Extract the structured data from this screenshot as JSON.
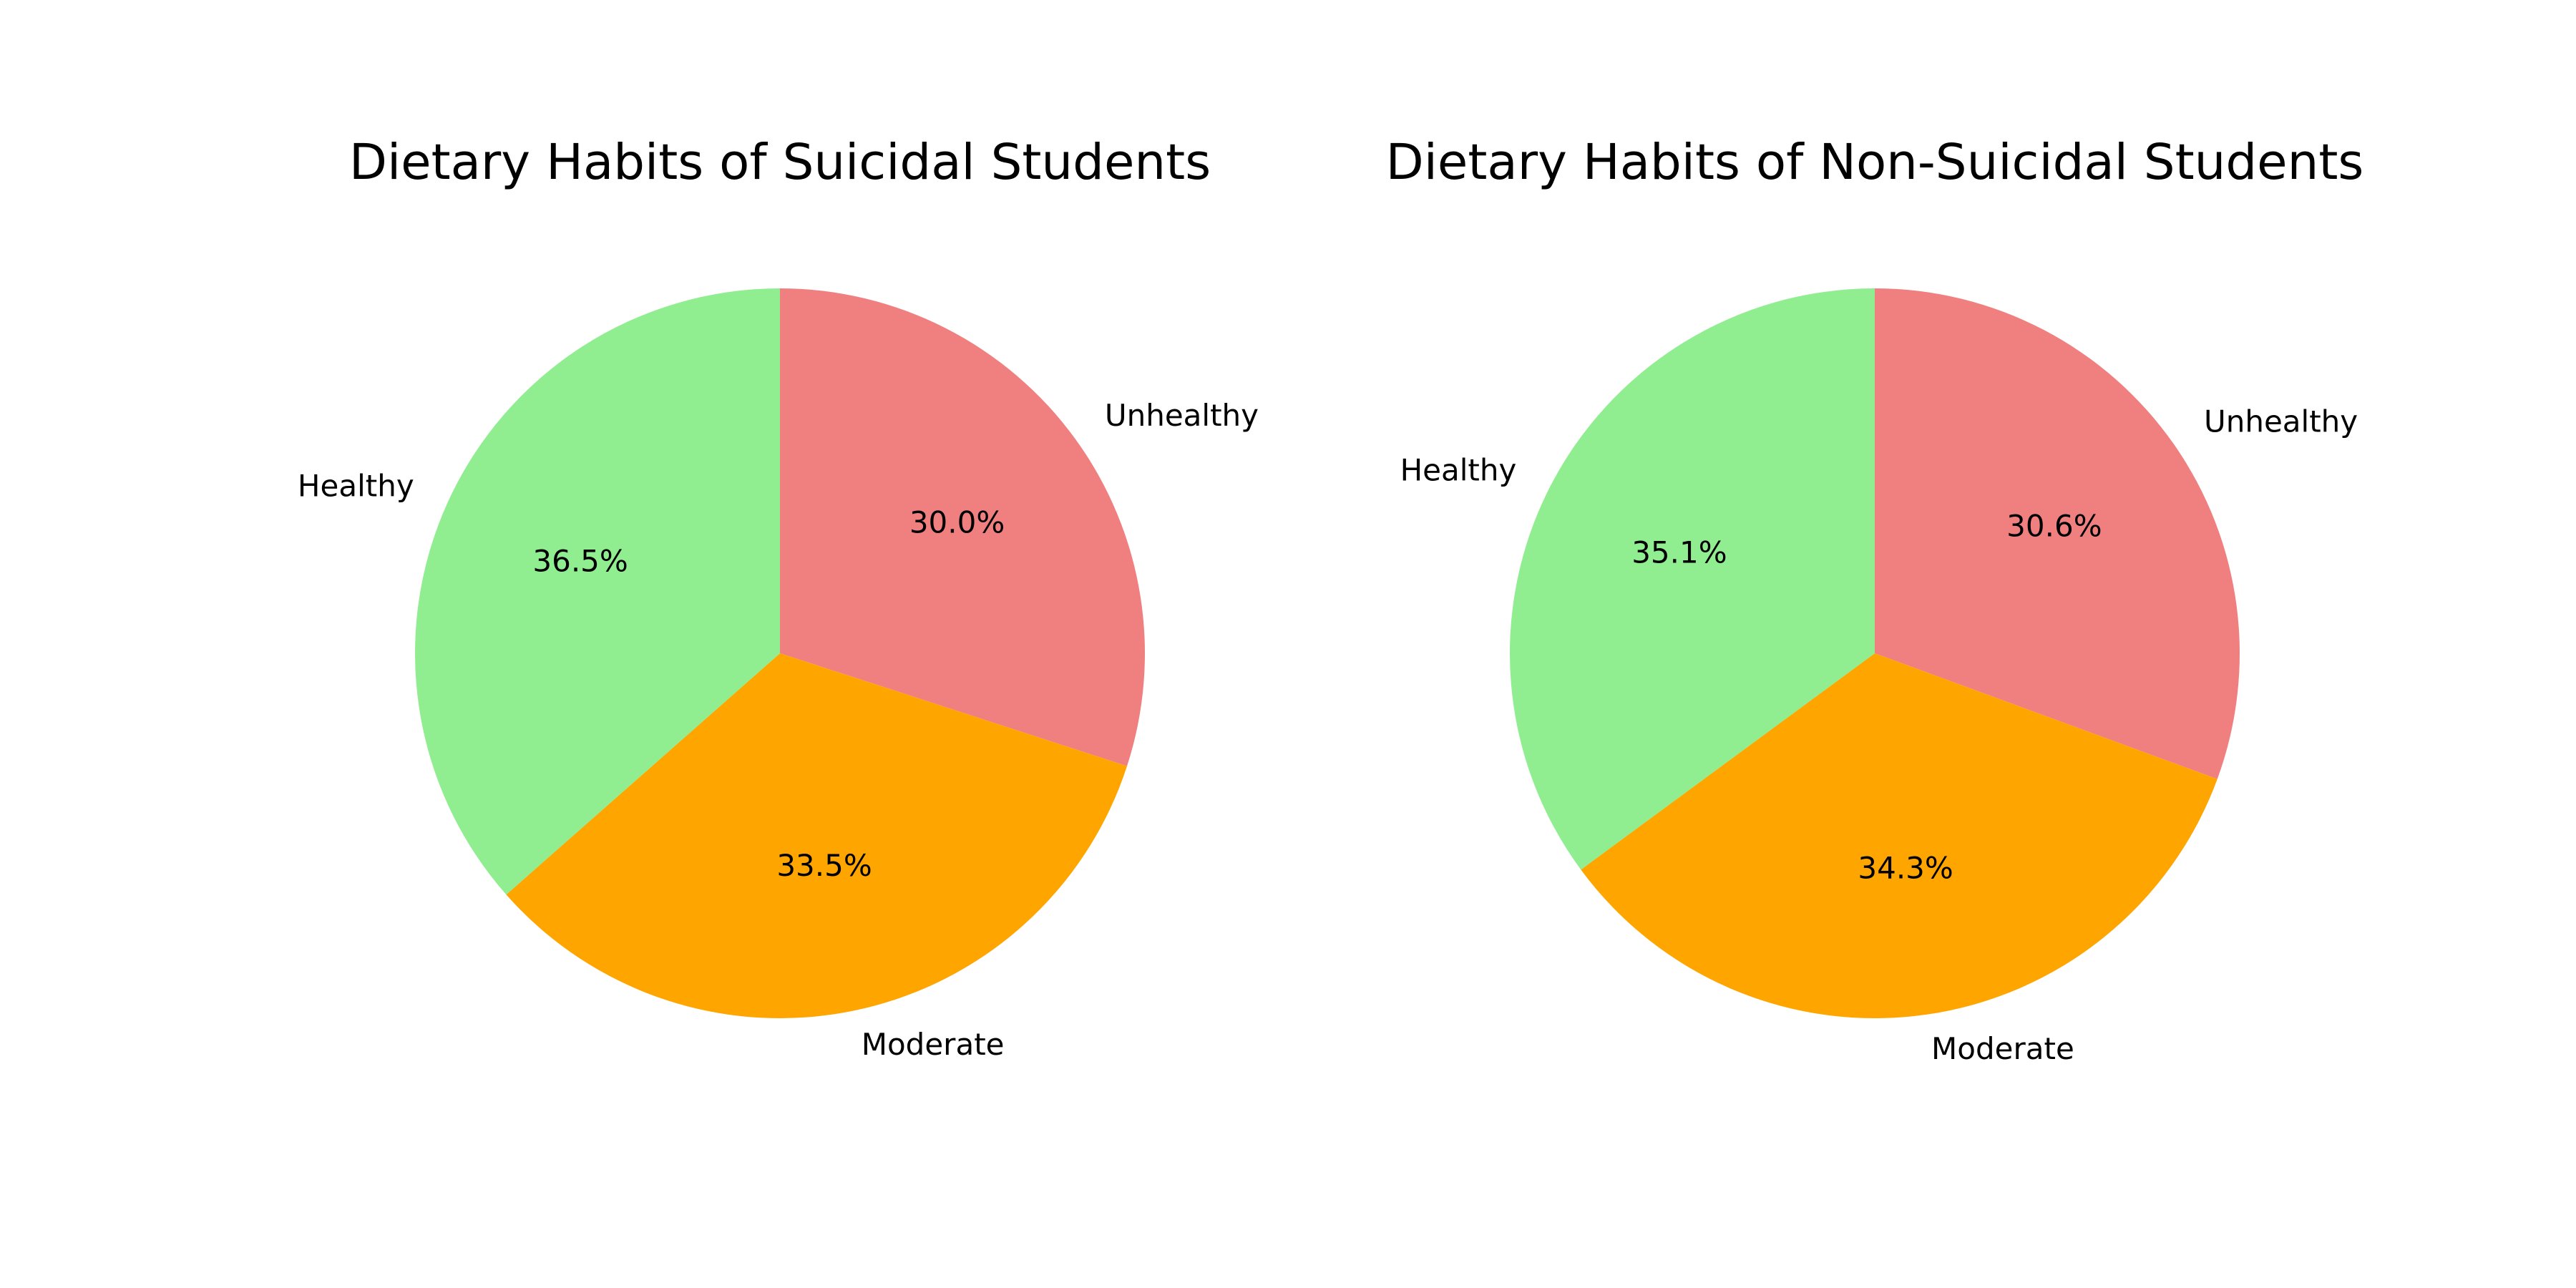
{
  "chart_data": [
    {
      "type": "pie",
      "title": "Dietary Habits of Suicidal Students",
      "categories": [
        "Unhealthy",
        "Moderate",
        "Healthy"
      ],
      "values": [
        30.0,
        33.5,
        36.5
      ],
      "value_labels": [
        "30.0%",
        "33.5%",
        "36.5%"
      ],
      "colors": [
        "#f08080",
        "#ffa500",
        "#90ee90"
      ],
      "start_angle_deg": 90,
      "direction": "clockwise"
    },
    {
      "type": "pie",
      "title": "Dietary Habits of Non-Suicidal Students",
      "categories": [
        "Unhealthy",
        "Moderate",
        "Healthy"
      ],
      "values": [
        30.6,
        34.3,
        35.1
      ],
      "value_labels": [
        "30.6%",
        "34.3%",
        "35.1%"
      ],
      "colors": [
        "#f08080",
        "#ffa500",
        "#90ee90"
      ],
      "start_angle_deg": 90,
      "direction": "clockwise"
    }
  ]
}
